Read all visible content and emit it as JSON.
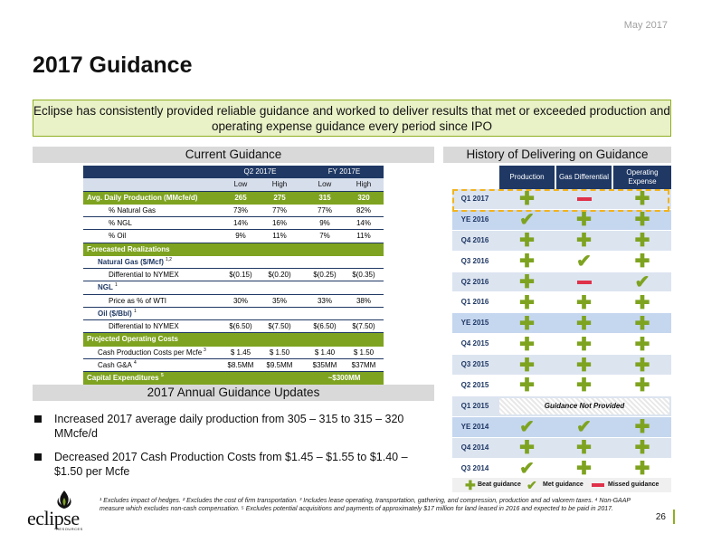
{
  "header": {
    "date": "May 2017",
    "title": "2017 Guidance"
  },
  "banner": "Eclipse has consistently provided reliable guidance and worked to deliver results that met or exceeded production and operating expense guidance every period since IPO",
  "current_guidance": {
    "heading": "Current Guidance",
    "groups": [
      "Q2 2017E",
      "FY 2017E"
    ],
    "cols": [
      "Low",
      "High",
      "Low",
      "High"
    ],
    "rows": [
      {
        "label": "Avg. Daily Production (MMcfe/d)",
        "vals": [
          "265",
          "275",
          "315",
          "320"
        ]
      },
      {
        "label": "% Natural Gas",
        "vals": [
          "73%",
          "77%",
          "77%",
          "82%"
        ]
      },
      {
        "label": "% NGL",
        "vals": [
          "14%",
          "16%",
          "9%",
          "14%"
        ]
      },
      {
        "label": "% Oil",
        "vals": [
          "9%",
          "11%",
          "7%",
          "11%"
        ]
      },
      {
        "label": "Forecasted Realizations"
      },
      {
        "label": "Natural Gas ($/Mcf)",
        "sup": "1,2"
      },
      {
        "label": "Differential to NYMEX",
        "vals": [
          "$(0.15)",
          "$(0.20)",
          "$(0.25)",
          "$(0.35)"
        ]
      },
      {
        "label": "NGL",
        "sup": "1"
      },
      {
        "label": "Price as % of WTI",
        "vals": [
          "30%",
          "35%",
          "33%",
          "38%"
        ]
      },
      {
        "label": "Oil ($/Bbl)",
        "sup": "1"
      },
      {
        "label": "Differential to NYMEX",
        "vals": [
          "$(6.50)",
          "$(7.50)",
          "$(6.50)",
          "$(7.50)"
        ]
      },
      {
        "label": "Projected Operating Costs"
      },
      {
        "label": "Cash Production Costs per Mcfe",
        "sup": "3",
        "vals": [
          "$ 1.45",
          "$ 1.50",
          "$ 1.40",
          "$ 1.50"
        ]
      },
      {
        "label": "Cash G&A",
        "sup": "4",
        "vals": [
          "$8.5MM",
          "$9.5MM",
          "$35MM",
          "$37MM"
        ]
      },
      {
        "label": "Capital Expenditures",
        "sup": "5",
        "val": "~$300MM"
      }
    ]
  },
  "updates": {
    "heading": "2017 Annual Guidance Updates",
    "bullets": [
      "Increased 2017 average daily production from 305 – 315 to 315 – 320 MMcfe/d",
      "Decreased 2017 Cash Production Costs from $1.45 – $1.55 to $1.40 – $1.50 per Mcfe"
    ]
  },
  "history": {
    "heading": "History of Delivering on Guidance",
    "columns": [
      "Production",
      "Gas Differential",
      "Operating Expense"
    ],
    "rows": [
      {
        "period": "Q1 2017",
        "marks": [
          "beat",
          "missed",
          "beat"
        ]
      },
      {
        "period": "YE 2016",
        "marks": [
          "met",
          "beat",
          "beat"
        ]
      },
      {
        "period": "Q4 2016",
        "marks": [
          "beat",
          "beat",
          "beat"
        ]
      },
      {
        "period": "Q3 2016",
        "marks": [
          "beat",
          "met",
          "beat"
        ]
      },
      {
        "period": "Q2 2016",
        "marks": [
          "beat",
          "missed",
          "met"
        ]
      },
      {
        "period": "Q1 2016",
        "marks": [
          "beat",
          "beat",
          "beat"
        ]
      },
      {
        "period": "YE 2015",
        "marks": [
          "beat",
          "beat",
          "beat"
        ]
      },
      {
        "period": "Q4 2015",
        "marks": [
          "beat",
          "beat",
          "beat"
        ]
      },
      {
        "period": "Q3 2015",
        "marks": [
          "beat",
          "beat",
          "beat"
        ]
      },
      {
        "period": "Q2 2015",
        "marks": [
          "beat",
          "beat",
          "beat"
        ]
      },
      {
        "period": "Q1 2015",
        "note": "Guidance Not Provided"
      },
      {
        "period": "YE 2014",
        "marks": [
          "met",
          "met",
          "beat"
        ]
      },
      {
        "period": "Q4 2014",
        "marks": [
          "beat",
          "beat",
          "beat"
        ]
      },
      {
        "period": "Q3 2014",
        "marks": [
          "met",
          "beat",
          "beat"
        ]
      }
    ],
    "legend": {
      "beat": "Beat guidance",
      "met": "Met guidance",
      "missed": "Missed guidance"
    }
  },
  "footnote": "¹ Excludes impact of hedges. ² Excludes the cost of firm transportation. ³ Includes lease operating, transportation, gathering, and compression, production and ad valorem taxes. ⁴ Non-GAAP measure which excludes non-cash compensation. ⁵ Excludes potential acquisitions and payments of approximately $17 million for land leased in 2016 and expected to be paid in 2017.",
  "page_number": "26",
  "logo": {
    "text": "eclipse",
    "sub": "RESOURCES"
  },
  "colors": {
    "navy": "#1f3864",
    "green": "#7ea320",
    "red": "#e0314a",
    "gold": "#f2b31b"
  }
}
